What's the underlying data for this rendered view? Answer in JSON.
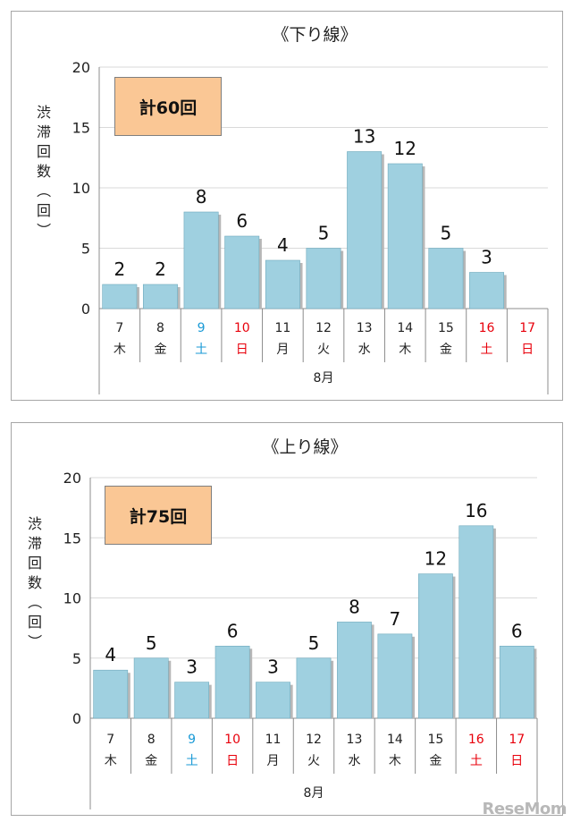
{
  "logo": "ReseMom",
  "chart_data": [
    {
      "type": "bar",
      "title": "《下り線》",
      "total_label": "計60回",
      "ylabel": "渋滞回数（回）",
      "xlabel": "8月",
      "ylim": [
        0,
        20
      ],
      "yticks": [
        "0",
        "5",
        "10",
        "15",
        "20"
      ],
      "grid": true,
      "categories": [
        {
          "day": "7",
          "weekday": "木",
          "color": "#222222"
        },
        {
          "day": "8",
          "weekday": "金",
          "color": "#222222"
        },
        {
          "day": "9",
          "weekday": "土",
          "color": "#1a9ad6"
        },
        {
          "day": "10",
          "weekday": "日",
          "color": "#e8000b"
        },
        {
          "day": "11",
          "weekday": "月",
          "color": "#222222"
        },
        {
          "day": "12",
          "weekday": "火",
          "color": "#222222"
        },
        {
          "day": "13",
          "weekday": "水",
          "color": "#222222"
        },
        {
          "day": "14",
          "weekday": "木",
          "color": "#222222"
        },
        {
          "day": "15",
          "weekday": "金",
          "color": "#222222"
        },
        {
          "day": "16",
          "weekday": "土",
          "color": "#e8000b"
        },
        {
          "day": "17",
          "weekday": "日",
          "color": "#e8000b"
        }
      ],
      "values": [
        2,
        2,
        8,
        6,
        4,
        5,
        13,
        12,
        5,
        3,
        null
      ],
      "bar_color": "#9fd0e0"
    },
    {
      "type": "bar",
      "title": "《上り線》",
      "total_label": "計75回",
      "ylabel": "渋滞回数（回）",
      "xlabel": "8月",
      "ylim": [
        0,
        20
      ],
      "yticks": [
        "0",
        "5",
        "10",
        "15",
        "20"
      ],
      "grid": true,
      "categories": [
        {
          "day": "7",
          "weekday": "木",
          "color": "#222222"
        },
        {
          "day": "8",
          "weekday": "金",
          "color": "#222222"
        },
        {
          "day": "9",
          "weekday": "土",
          "color": "#1a9ad6"
        },
        {
          "day": "10",
          "weekday": "日",
          "color": "#e8000b"
        },
        {
          "day": "11",
          "weekday": "月",
          "color": "#222222"
        },
        {
          "day": "12",
          "weekday": "火",
          "color": "#222222"
        },
        {
          "day": "13",
          "weekday": "水",
          "color": "#222222"
        },
        {
          "day": "14",
          "weekday": "木",
          "color": "#222222"
        },
        {
          "day": "15",
          "weekday": "金",
          "color": "#222222"
        },
        {
          "day": "16",
          "weekday": "土",
          "color": "#e8000b"
        },
        {
          "day": "17",
          "weekday": "日",
          "color": "#e8000b"
        }
      ],
      "values": [
        4,
        5,
        3,
        6,
        3,
        5,
        8,
        7,
        12,
        16,
        6
      ],
      "bar_color": "#9fd0e0"
    }
  ]
}
